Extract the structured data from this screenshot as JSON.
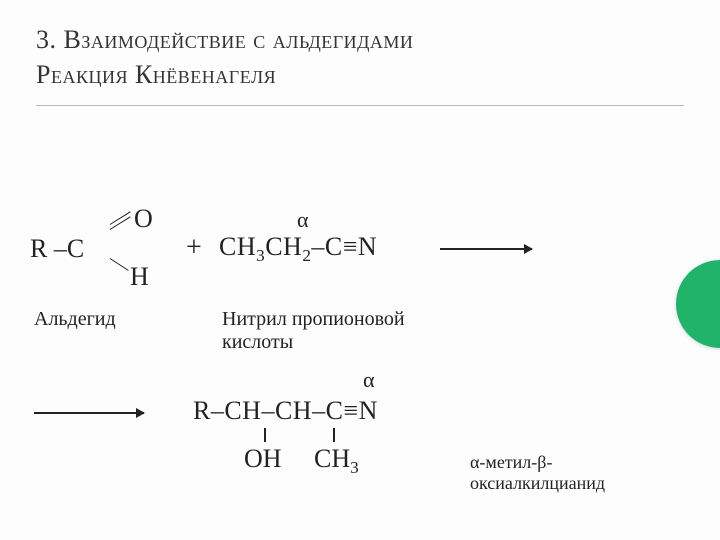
{
  "colors": {
    "text": "#222222",
    "background": "#fdfdfd",
    "rule": "#b9b9b9",
    "accent": "#1fb46a"
  },
  "title": {
    "line1": "3. Взаимодействие с альдегидами",
    "line2": "Реакция Кнёвенагеля"
  },
  "aldehyde": {
    "R_C": "R –C",
    "O": "O",
    "H": "H",
    "label": "Альдегид"
  },
  "plus": "+",
  "alpha": "α",
  "nitrile": {
    "formula_prefix": "CH",
    "sub3": "3",
    "mid": "CH",
    "sub2": "2",
    "tail": "–C≡N",
    "label": "Нитрил пропионовой\nкислоты"
  },
  "product": {
    "formula": "R–CH–CH–C≡N",
    "OH": "OH",
    "CH3_prefix": "CH",
    "CH3_sub": "3",
    "label": "α-метил-β-\nоксиалкилцианид"
  }
}
